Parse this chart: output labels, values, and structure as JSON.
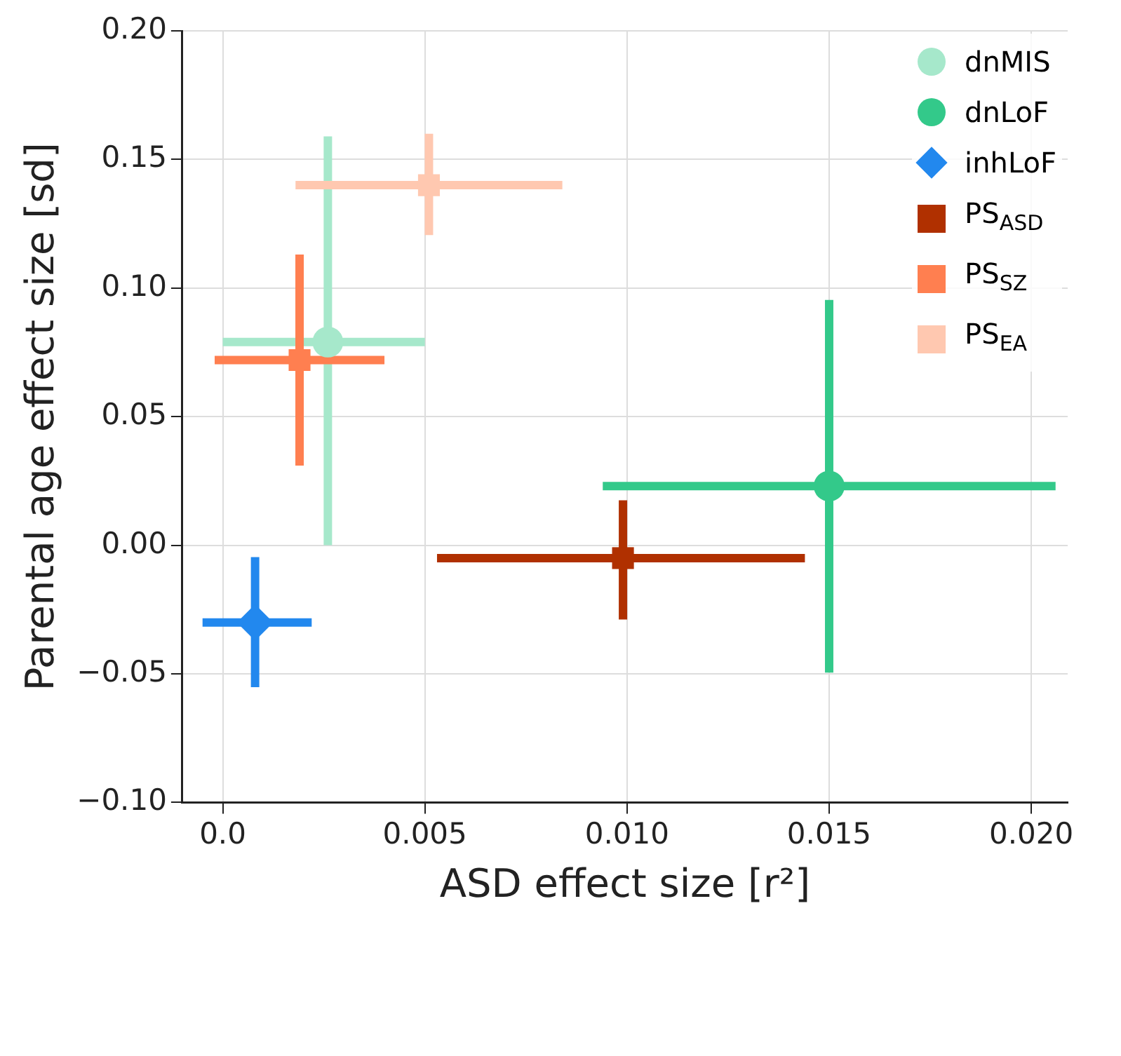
{
  "chart_data": {
    "type": "scatter",
    "xlabel": "ASD effect size [r²]",
    "ylabel": "Parental age effect size [sd]",
    "xlim": [
      -0.001,
      0.0209
    ],
    "ylim": [
      -0.1,
      0.2
    ],
    "xticks": [
      {
        "value": 0,
        "label": "0.0"
      },
      {
        "value": 0.005,
        "label": "0.005"
      },
      {
        "value": 0.01,
        "label": "0.010"
      },
      {
        "value": 0.015,
        "label": "0.015"
      },
      {
        "value": 0.02,
        "label": "0.020"
      }
    ],
    "yticks": [
      {
        "value": -0.1,
        "label": "−0.10"
      },
      {
        "value": -0.05,
        "label": "−0.05"
      },
      {
        "value": 0,
        "label": "0.00"
      },
      {
        "value": 0.05,
        "label": "0.05"
      },
      {
        "value": 0.1,
        "label": "0.10"
      },
      {
        "value": 0.15,
        "label": "0.15"
      },
      {
        "value": 0.2,
        "label": "0.20"
      }
    ],
    "grid": true,
    "legend": "top right",
    "series": [
      {
        "name": "dnMIS",
        "color": "#a6e8cb",
        "marker": "circle",
        "x": [
          0.0026
        ],
        "values": [
          0.079
        ],
        "xerrors": [
          [
            0.0,
            0.005
          ]
        ],
        "errors": [
          [
            0.0,
            0.159
          ]
        ]
      },
      {
        "name": "dnLoF",
        "color": "#33c98a",
        "marker": "circle",
        "x": [
          0.015
        ],
        "values": [
          0.023
        ],
        "xerrors": [
          [
            0.0094,
            0.0206
          ]
        ],
        "errors": [
          [
            -0.0495,
            0.0954
          ]
        ]
      },
      {
        "name": "inhLoF",
        "color": "#2288ee",
        "marker": "diamond",
        "x": [
          0.0008
        ],
        "values": [
          -0.03
        ],
        "xerrors": [
          [
            -0.0005,
            0.0022
          ]
        ],
        "errors": [
          [
            -0.0552,
            -0.0046
          ]
        ]
      },
      {
        "name": "PS$_{ASD}$",
        "color": "#b03000",
        "marker": "square",
        "x": [
          0.0099
        ],
        "values": [
          -0.005
        ],
        "xerrors": [
          [
            0.0053,
            0.0144
          ]
        ],
        "errors": [
          [
            -0.0289,
            0.0175
          ]
        ]
      },
      {
        "name": "PS$_{SZ}$",
        "color": "#ff7f50",
        "marker": "square",
        "x": [
          0.0019
        ],
        "values": [
          0.072
        ],
        "xerrors": [
          [
            -0.0002,
            0.004
          ]
        ],
        "errors": [
          [
            0.031,
            0.113
          ]
        ]
      },
      {
        "name": "PS$_{EA}$",
        "color": "#ffc8b0",
        "marker": "square",
        "x": [
          0.0051
        ],
        "values": [
          0.14
        ],
        "xerrors": [
          [
            0.0018,
            0.0084
          ]
        ],
        "errors": [
          [
            0.1206,
            0.16
          ]
        ]
      }
    ]
  }
}
